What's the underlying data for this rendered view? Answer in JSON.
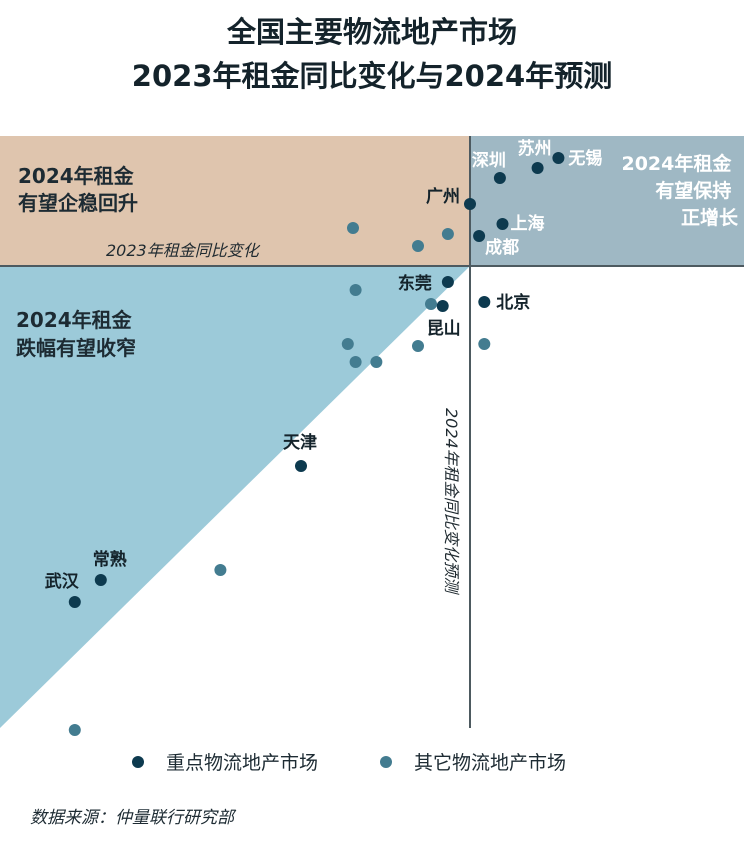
{
  "title_line1": "全国主要物流地产市场",
  "title_line2": "2023年租金同比变化与2024年预测",
  "chart_data": {
    "type": "scatter",
    "x_axis_label": "2023年租金同比变化",
    "y_axis_label": "2024年租金同比变化预测",
    "quadrant_labels": {
      "top_left": [
        "2024年租金",
        "有望企稳回升"
      ],
      "top_right": [
        "2024年租金",
        "有望保持",
        "正增长"
      ],
      "lower_left": [
        "2024年租金",
        "跌幅有望收窄"
      ]
    },
    "series": [
      {
        "name": "重点物流地产市场",
        "color": "#0d3a4f",
        "points": [
          {
            "label": "广州",
            "x": 0.0,
            "y": 1.55
          },
          {
            "label": "深圳",
            "x": 1.15,
            "y": 2.2
          },
          {
            "label": "苏州",
            "x": 2.6,
            "y": 2.45
          },
          {
            "label": "无锡",
            "x": 3.4,
            "y": 2.7
          },
          {
            "label": "上海",
            "x": 1.25,
            "y": 1.05
          },
          {
            "label": "成都",
            "x": 0.35,
            "y": 0.75
          },
          {
            "label": "东莞",
            "x": -0.85,
            "y": -0.4
          },
          {
            "label": "昆山",
            "x": -1.05,
            "y": -1.0
          },
          {
            "label": "北京",
            "x": 0.55,
            "y": -0.9
          },
          {
            "label": "天津",
            "x": -6.5,
            "y": -5.0
          },
          {
            "label": "武汉",
            "x": -15.2,
            "y": -8.4
          },
          {
            "label": "常熟",
            "x": -14.2,
            "y": -7.85
          }
        ]
      },
      {
        "name": "其它物流地产市场",
        "color": "#437c90",
        "points": [
          {
            "x": -4.5,
            "y": 0.95
          },
          {
            "x": -2.0,
            "y": 0.5
          },
          {
            "x": -0.85,
            "y": 0.8
          },
          {
            "x": -4.4,
            "y": -0.6
          },
          {
            "x": -4.7,
            "y": -1.95
          },
          {
            "x": -4.4,
            "y": -2.4
          },
          {
            "x": -3.6,
            "y": -2.4
          },
          {
            "x": -2.0,
            "y": -2.0
          },
          {
            "x": -1.5,
            "y": -0.95
          },
          {
            "x": 0.55,
            "y": -1.95
          },
          {
            "x": -9.6,
            "y": -7.6
          },
          {
            "x": -15.2,
            "y": -11.6
          }
        ]
      }
    ]
  },
  "source": "数据来源：仲量联行研究部"
}
